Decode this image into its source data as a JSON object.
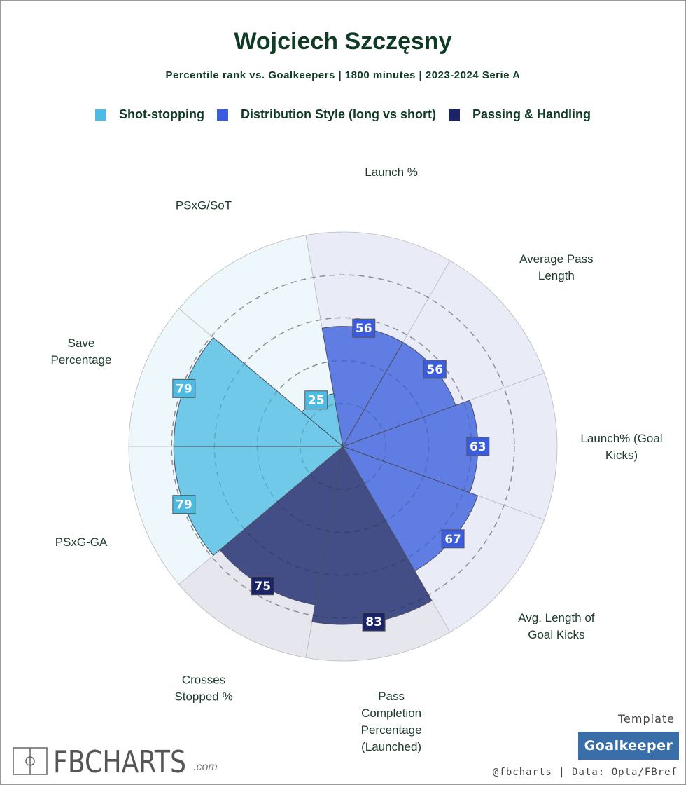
{
  "chart_data": {
    "type": "polar-bar",
    "title": "Wojciech Szczęsny",
    "subtitle": "Percentile rank vs. Goalkeepers | 1800 minutes | 2023-2024 Serie A",
    "rlim": [
      0,
      100
    ],
    "grid_circles": [
      20,
      40,
      60,
      80
    ],
    "legend": [
      {
        "name": "Shot-stopping",
        "color": "#4dbbe3"
      },
      {
        "name": "Distribution Style (long vs short)",
        "color": "#3b5ddd"
      },
      {
        "name": "Passing & Handling",
        "color": "#1a2466"
      }
    ],
    "categories": [
      {
        "label": [
          "Launch %"
        ],
        "value": 56,
        "group": 1
      },
      {
        "label": [
          "Average Pass",
          "Length"
        ],
        "value": 56,
        "group": 1
      },
      {
        "label": [
          "Launch% (Goal",
          "Kicks)"
        ],
        "value": 63,
        "group": 1
      },
      {
        "label": [
          "Avg. Length of",
          "Goal Kicks"
        ],
        "value": 67,
        "group": 1
      },
      {
        "label": [
          "Pass",
          "Completion",
          "Percentage",
          "(Launched)"
        ],
        "value": 83,
        "group": 2
      },
      {
        "label": [
          "Crosses",
          "Stopped %"
        ],
        "value": 75,
        "group": 2
      },
      {
        "label": [
          "PSxG-GA"
        ],
        "value": 79,
        "group": 0
      },
      {
        "label": [
          "Save",
          "Percentage"
        ],
        "value": 79,
        "group": 0
      },
      {
        "label": [
          "PSxG/SoT"
        ],
        "value": 25,
        "group": 0
      }
    ],
    "group_colors": {
      "bar": [
        "#69c6e8",
        "#5877e3",
        "#3a4681"
      ],
      "background": [
        "#eef7fc",
        "#e9ebf7",
        "#e6e7ee"
      ],
      "box": [
        "#4dbbe3",
        "#3b5ddd",
        "#1a2466"
      ]
    }
  },
  "footer": {
    "logo": "FBCHARTS",
    "logo_suffix": ".com",
    "template_label": "Template",
    "template_value": "Goalkeeper",
    "credit": "@fbcharts | Data: Opta/FBref"
  }
}
